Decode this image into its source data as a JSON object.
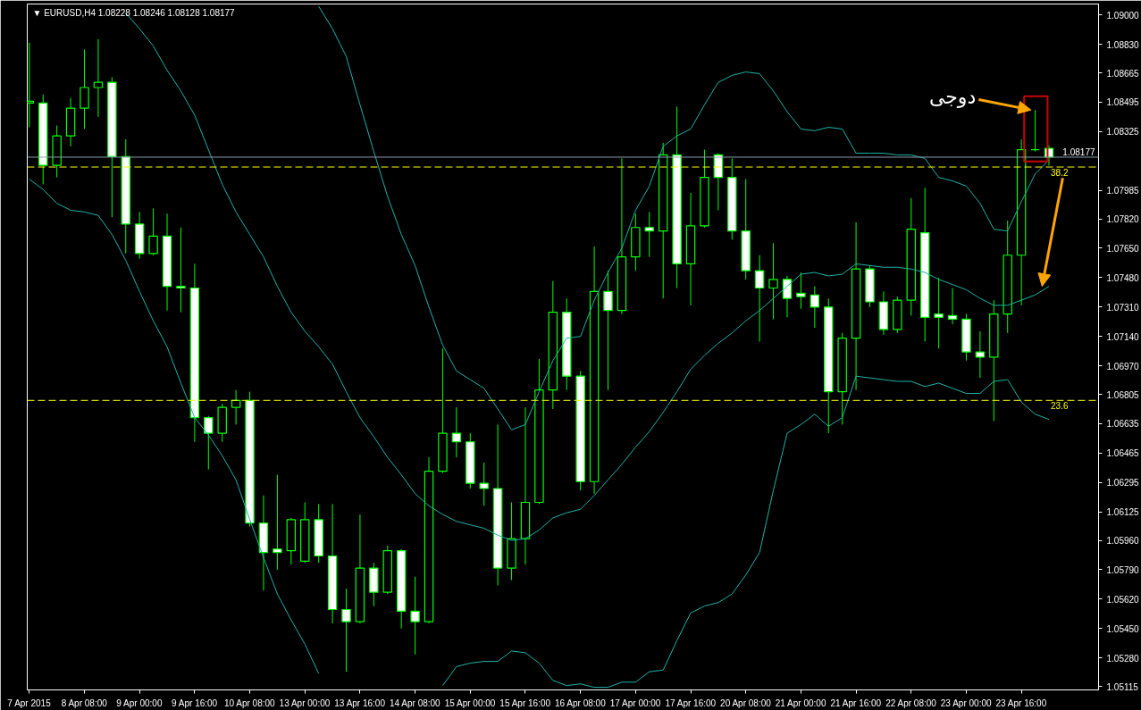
{
  "chart_data": {
    "type": "candlestick",
    "title": "▼ EURUSD,H4  1.08228 1.08246 1.08128 1.08177",
    "categories": [
      "7 Apr 2015",
      null,
      null,
      null,
      "8 Apr 08:00",
      null,
      null,
      null,
      "9 Apr 00:00",
      null,
      null,
      null,
      "9 Apr 16:00",
      null,
      null,
      null,
      "10 Apr 08:00",
      null,
      null,
      null,
      "13 Apr 00:00",
      null,
      null,
      null,
      "13 Apr 16:00",
      null,
      null,
      null,
      "14 Apr 08:00",
      null,
      null,
      null,
      "15 Apr 00:00",
      null,
      null,
      null,
      "15 Apr 16:00",
      null,
      null,
      null,
      "16 Apr 08:00",
      null,
      null,
      null,
      "17 Apr 00:00",
      null,
      null,
      null,
      "17 Apr 16:00",
      null,
      null,
      null,
      "20 Apr 08:00",
      null,
      null,
      null,
      "21 Apr 00:00",
      null,
      null,
      null,
      "21 Apr 16:00",
      null,
      null,
      null,
      "22 Apr 08:00",
      null,
      null,
      null,
      "23 Apr 00:00",
      null,
      null,
      null,
      "23 Apr 16:00",
      null,
      null
    ],
    "ylim": [
      1.05095,
      1.09063
    ],
    "yticks": [
      {
        "value": 1.09,
        "label": "1.09000"
      },
      {
        "value": 1.0883,
        "label": "1.08830"
      },
      1.08665,
      1.08495,
      1.08325,
      1.07985,
      {
        "value": 1.0782,
        "label": "1.07820"
      },
      {
        "value": 1.0765,
        "label": "1.07650"
      },
      {
        "value": 1.0748,
        "label": "1.07480"
      },
      {
        "value": 1.0731,
        "label": "1.07310"
      },
      {
        "value": 1.0714,
        "label": "1.07140"
      },
      {
        "value": 1.0697,
        "label": "1.06970"
      },
      1.06805,
      1.06635,
      1.06465,
      1.06295,
      1.06125,
      {
        "value": 1.0596,
        "label": "1.05960"
      },
      {
        "value": 1.0579,
        "label": "1.05790"
      },
      {
        "value": 1.0562,
        "label": "1.05620"
      },
      {
        "value": 1.0545,
        "label": "1.05450"
      },
      {
        "value": 1.0528,
        "label": "1.05280"
      },
      1.05115
    ],
    "series": [
      {
        "color": "#00ff00",
        "colors": [
          "#000000",
          "#ffffff",
          "#000000",
          "#000000",
          "#000000",
          "#000000",
          "#ffffff",
          "#ffffff",
          "#ffffff",
          "#000000",
          "#ffffff",
          "#ffffff",
          "#ffffff",
          "#ffffff",
          "#000000",
          "#000000",
          "#ffffff",
          "#ffffff",
          "#ffffff",
          "#000000",
          "#000000",
          "#ffffff",
          "#ffffff",
          "#ffffff",
          "#000000",
          "#ffffff",
          "#000000",
          "#ffffff",
          "#ffffff",
          "#000000",
          "#000000",
          "#ffffff",
          "#ffffff",
          "#ffffff",
          "#ffffff",
          "#000000",
          "#000000",
          "#000000",
          "#000000",
          "#ffffff",
          "#ffffff",
          "#000000",
          "#ffffff",
          "#000000",
          "#000000",
          "#ffffff",
          "#000000",
          "#ffffff",
          "#000000",
          "#000000",
          "#ffffff",
          "#ffffff",
          "#ffffff",
          "#ffffff",
          "#000000",
          "#ffffff",
          "#ffffff",
          "#ffffff",
          "#ffffff",
          "#000000",
          "#000000",
          "#ffffff",
          "#ffffff",
          "#000000",
          "#000000",
          "#ffffff",
          "#ffffff",
          "#ffffff",
          "#ffffff",
          "#ffffff",
          "#000000",
          "#000000",
          "#000000",
          "#00ff00",
          "#ffffff"
        ],
        "ohlc": [
          [
            1.0849,
            1.0884,
            1.0835,
            1.085
          ],
          [
            1.0849,
            1.0854,
            1.0802,
            1.0813
          ],
          [
            1.0813,
            1.0836,
            1.0806,
            1.083
          ],
          [
            1.083,
            1.0852,
            1.0824,
            1.0846
          ],
          [
            1.0846,
            1.088,
            1.0834,
            1.0858
          ],
          [
            1.0858,
            1.0886,
            1.0841,
            1.0861
          ],
          [
            1.0861,
            1.0864,
            1.0783,
            1.0818
          ],
          [
            1.0818,
            1.0828,
            1.0762,
            1.0779
          ],
          [
            1.0779,
            1.0786,
            1.0759,
            1.0762
          ],
          [
            1.0762,
            1.0788,
            1.0761,
            1.0772
          ],
          [
            1.0772,
            1.0785,
            1.0729,
            1.0743
          ],
          [
            1.0743,
            1.0777,
            1.0728,
            1.0742
          ],
          [
            1.0742,
            1.0756,
            1.0653,
            1.0667
          ],
          [
            1.0667,
            1.0668,
            1.0637,
            1.0658
          ],
          [
            1.0658,
            1.0675,
            1.0653,
            1.0673
          ],
          [
            1.0673,
            1.0683,
            1.0663,
            1.0677
          ],
          [
            1.0677,
            1.0682,
            1.0604,
            1.0606
          ],
          [
            1.0606,
            1.0622,
            1.0567,
            1.0589
          ],
          [
            1.0591,
            1.0634,
            1.0579,
            1.0589
          ],
          [
            1.059,
            1.0609,
            1.0582,
            1.0608
          ],
          [
            1.0584,
            1.0618,
            1.0583,
            1.0608
          ],
          [
            1.0608,
            1.0617,
            1.0583,
            1.0587
          ],
          [
            1.0587,
            1.0617,
            1.0548,
            1.0556
          ],
          [
            1.0556,
            1.0568,
            1.052,
            1.0549
          ],
          [
            1.0549,
            1.0611,
            1.0548,
            1.058
          ],
          [
            1.058,
            1.0583,
            1.0558,
            1.0566
          ],
          [
            1.0566,
            1.0593,
            1.0565,
            1.059
          ],
          [
            1.059,
            1.0591,
            1.0545,
            1.0555
          ],
          [
            1.0555,
            1.0575,
            1.053,
            1.0549
          ],
          [
            1.0549,
            1.0644,
            1.0548,
            1.0636
          ],
          [
            1.0636,
            1.0707,
            1.0635,
            1.0658
          ],
          [
            1.0658,
            1.0673,
            1.0644,
            1.0653
          ],
          [
            1.0653,
            1.0658,
            1.0626,
            1.0629
          ],
          [
            1.0629,
            1.0641,
            1.0616,
            1.0626
          ],
          [
            1.0626,
            1.0663,
            1.057,
            1.058
          ],
          [
            1.058,
            1.0618,
            1.0573,
            1.0597
          ],
          [
            1.0597,
            1.0673,
            1.0582,
            1.0618
          ],
          [
            1.0618,
            1.0701,
            1.0617,
            1.0683
          ],
          [
            1.0683,
            1.0746,
            1.0672,
            1.0728
          ],
          [
            1.0728,
            1.0736,
            1.0683,
            1.0691
          ],
          [
            1.0691,
            1.0694,
            1.0625,
            1.063
          ],
          [
            1.063,
            1.0766,
            1.0623,
            1.074
          ],
          [
            1.074,
            1.0752,
            1.0683,
            1.0729
          ],
          [
            1.0729,
            1.0817,
            1.0727,
            1.076
          ],
          [
            1.076,
            1.0785,
            1.0752,
            1.0777
          ],
          [
            1.0777,
            1.0786,
            1.076,
            1.0775
          ],
          [
            1.0775,
            1.0826,
            1.0736,
            1.0819
          ],
          [
            1.0819,
            1.0847,
            1.0742,
            1.0756
          ],
          [
            1.0756,
            1.0797,
            1.0732,
            1.0778
          ],
          [
            1.0778,
            1.0822,
            1.0777,
            1.0806
          ],
          [
            1.0819,
            1.082,
            1.0787,
            1.0806
          ],
          [
            1.0806,
            1.0817,
            1.077,
            1.0775
          ],
          [
            1.0775,
            1.0805,
            1.0747,
            1.0752
          ],
          [
            1.0752,
            1.0761,
            1.0711,
            1.0742
          ],
          [
            1.0742,
            1.0768,
            1.0724,
            1.0747
          ],
          [
            1.0747,
            1.0749,
            1.0725,
            1.0736
          ],
          [
            1.0739,
            1.0751,
            1.073,
            1.0737
          ],
          [
            1.0738,
            1.0743,
            1.0719,
            1.0731
          ],
          [
            1.0731,
            1.0736,
            1.0658,
            1.0682
          ],
          [
            1.0682,
            1.0716,
            1.0663,
            1.0713
          ],
          [
            1.0713,
            1.078,
            1.0683,
            1.0753
          ],
          [
            1.0753,
            1.0755,
            1.0731,
            1.0734
          ],
          [
            1.0734,
            1.074,
            1.0715,
            1.0718
          ],
          [
            1.0718,
            1.0737,
            1.0716,
            1.0735
          ],
          [
            1.0735,
            1.0794,
            1.0726,
            1.0776
          ],
          [
            1.0774,
            1.08,
            1.0711,
            1.0725
          ],
          [
            1.0727,
            1.0748,
            1.0707,
            1.0725
          ],
          [
            1.0726,
            1.0742,
            1.0721,
            1.0724
          ],
          [
            1.0724,
            1.0727,
            1.07,
            1.0705
          ],
          [
            1.0705,
            1.0717,
            1.069,
            1.0702
          ],
          [
            1.0702,
            1.0735,
            1.0665,
            1.0727
          ],
          [
            1.0727,
            1.0781,
            1.0716,
            1.0761
          ],
          [
            1.0761,
            1.0828,
            1.0732,
            1.0822
          ],
          [
            1.0822,
            1.0845,
            1.0821,
            1.0822
          ],
          [
            1.08228,
            1.08246,
            1.08128,
            1.08177
          ]
        ]
      },
      {
        "type": "line",
        "color": "#20b2aa",
        "values": [
          null,
          null,
          null,
          null,
          null,
          null,
          null,
          null,
          null,
          null,
          null,
          null,
          null,
          null,
          null,
          null,
          null,
          null,
          null,
          null,
          null,
          1.0905,
          1.0892,
          1.0876,
          1.0848,
          1.0821,
          1.0795,
          1.0773,
          1.0755,
          1.0731,
          1.0709,
          1.0694,
          1.0689,
          1.0684,
          1.0672,
          1.066,
          1.0663,
          1.0682,
          1.07,
          1.0713,
          1.0714,
          1.0735,
          1.0751,
          1.0765,
          1.0787,
          1.0801,
          1.0824,
          1.083,
          1.0834,
          1.0848,
          1.0861,
          1.0865,
          1.0867,
          1.0866,
          1.0856,
          1.0844,
          1.0834,
          1.0833,
          1.0835,
          1.0834,
          1.082,
          1.082,
          1.082,
          1.0819,
          1.0819,
          1.0817,
          1.0806,
          1.0804,
          1.0801,
          1.0791,
          1.0776,
          1.0775,
          1.0792,
          1.0808,
          1.0816
        ]
      },
      {
        "type": "line",
        "color": "#20b2aa",
        "values": [
          null,
          null,
          null,
          null,
          null,
          null,
          null,
          1.0901,
          1.0892,
          1.0882,
          1.0868,
          1.0856,
          1.0842,
          1.0822,
          1.0802,
          1.0786,
          1.0773,
          1.076,
          1.0743,
          1.0728,
          1.0717,
          1.0708,
          1.0698,
          1.0682,
          1.0667,
          1.0656,
          1.0644,
          1.0634,
          1.0623,
          1.0616,
          1.0611,
          1.0607,
          1.0605,
          1.0603,
          1.0599,
          1.0596,
          1.0597,
          1.0602,
          1.0609,
          1.0612,
          1.0614,
          1.0622,
          1.0631,
          1.064,
          1.065,
          1.0659,
          1.067,
          1.0682,
          1.0695,
          1.0703,
          1.071,
          1.0716,
          1.0723,
          1.0729,
          1.0736,
          1.0743,
          1.075,
          1.0751,
          1.0749,
          1.075,
          1.0756,
          1.0755,
          1.0754,
          1.0754,
          1.0753,
          1.0751,
          1.0747,
          1.0744,
          1.0741,
          1.0736,
          1.0732,
          1.0732,
          1.0735,
          1.0738,
          1.0743
        ]
      },
      {
        "type": "line",
        "color": "#20b2aa",
        "values": [
          1.0805,
          1.0799,
          1.0791,
          1.0787,
          1.0786,
          1.0784,
          1.0773,
          1.0758,
          1.074,
          1.0723,
          1.0708,
          1.0687,
          1.0667,
          1.0657,
          1.0645,
          1.0631,
          1.0608,
          1.0586,
          1.0565,
          1.055,
          1.0536,
          1.0519,
          null,
          null,
          null,
          null,
          null,
          null,
          null,
          null,
          1.0512,
          1.0523,
          1.0525,
          1.0526,
          1.0526,
          1.0532,
          1.0531,
          1.0525,
          1.0515,
          1.0512,
          1.0513,
          1.0511,
          1.0511,
          1.0514,
          1.0514,
          1.052,
          1.0521,
          1.0538,
          1.0554,
          1.0558,
          1.056,
          1.0565,
          1.0576,
          1.0589,
          1.0625,
          1.0658,
          1.0663,
          1.0669,
          1.0662,
          1.0667,
          1.0691,
          1.069,
          1.0689,
          1.0688,
          1.0688,
          1.0685,
          1.0687,
          1.0684,
          1.0681,
          1.0681,
          1.0688,
          1.0689,
          1.0676,
          1.0669,
          1.0666
        ]
      }
    ],
    "ref_lines": [
      {
        "axis": "y",
        "value": 1.08177,
        "label": "1.08177",
        "color": "#8c9db0",
        "line_style": "solid"
      },
      {
        "axis": "y",
        "value": 1.0812,
        "color": "#ffff00",
        "line_style": "dashed"
      },
      {
        "axis": "y",
        "value": 1.0677,
        "color": "#ffff00",
        "line_style": "dashed"
      }
    ],
    "annotations": [
      "دوجى",
      {
        "text": "38.2",
        "y": 1.0812
      },
      {
        "text": "23.6",
        "y": 1.0677
      }
    ]
  }
}
